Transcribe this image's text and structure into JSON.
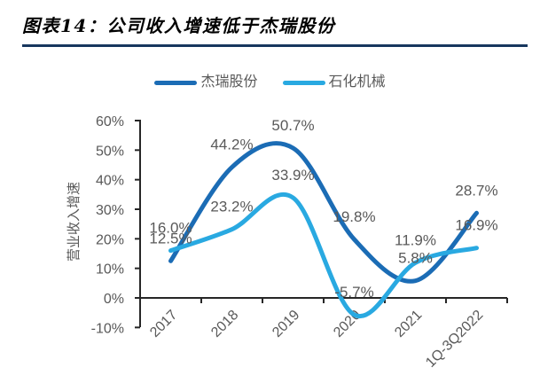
{
  "figure": {
    "title": "图表14：公司收入增速低于杰瑞股份",
    "accent_color": "#17375e"
  },
  "chart_data": {
    "type": "line",
    "categories": [
      "2017",
      "2018",
      "2019",
      "2020",
      "2021",
      "1Q-3Q2022"
    ],
    "series": [
      {
        "name": "杰瑞股份",
        "color": "#1b6cb5",
        "values": [
          12.5,
          44.2,
          50.7,
          19.8,
          5.8,
          28.7
        ]
      },
      {
        "name": "石化机械",
        "color": "#29a9e1",
        "values": [
          16.0,
          23.2,
          33.9,
          -5.7,
          11.9,
          16.9
        ]
      }
    ],
    "title": "",
    "xlabel": "",
    "ylabel": "营业收入增速",
    "ylim": [
      -10,
      60
    ],
    "y_ticks": [
      "60%",
      "50%",
      "40%",
      "30%",
      "20%",
      "10%",
      "0%",
      "-10%"
    ],
    "y_tick_values": [
      60,
      50,
      40,
      30,
      20,
      10,
      0,
      -10
    ],
    "data_label_suffix": "%",
    "grid": false,
    "legend_position": "top",
    "smoothed_lines": true,
    "label_color": "#595959",
    "axis_color": "#262626"
  }
}
